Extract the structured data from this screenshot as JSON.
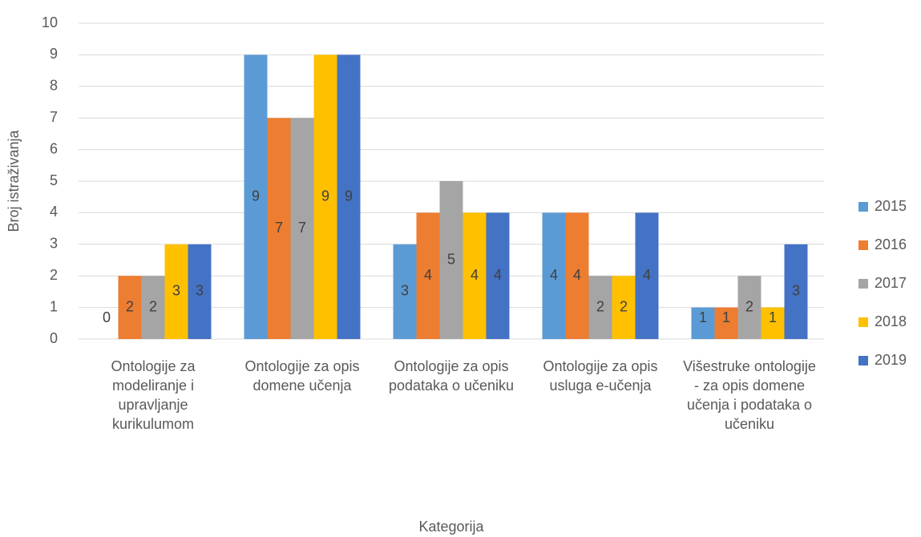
{
  "chart_data": {
    "type": "bar",
    "x_label": "Kategorija",
    "y_label": "Broj istraživanja",
    "categories": [
      "Ontologije za modeliranje i upravljanje kurikulumom",
      "Ontologije za opis domene učenja",
      "Ontologije za opis podataka o učeniku",
      "Ontologije za opis usluga e-učenja",
      "Višestruke ontologije - za opis domene učenja i podataka o učeniku"
    ],
    "series": [
      {
        "name": "2015",
        "color": "#5b9bd5",
        "values": [
          0,
          9,
          3,
          4,
          1
        ]
      },
      {
        "name": "2016",
        "color": "#ed7d31",
        "values": [
          2,
          7,
          4,
          4,
          1
        ]
      },
      {
        "name": "2017",
        "color": "#a5a5a5",
        "values": [
          2,
          7,
          5,
          2,
          2
        ]
      },
      {
        "name": "2018",
        "color": "#ffc000",
        "values": [
          3,
          9,
          4,
          2,
          1
        ]
      },
      {
        "name": "2019",
        "color": "#4472c4",
        "values": [
          3,
          9,
          4,
          4,
          3
        ]
      }
    ],
    "ylim": [
      0,
      10
    ],
    "yticks": [
      0,
      1,
      2,
      3,
      4,
      5,
      6,
      7,
      8,
      9,
      10
    ],
    "grid": true,
    "legend": "right"
  }
}
